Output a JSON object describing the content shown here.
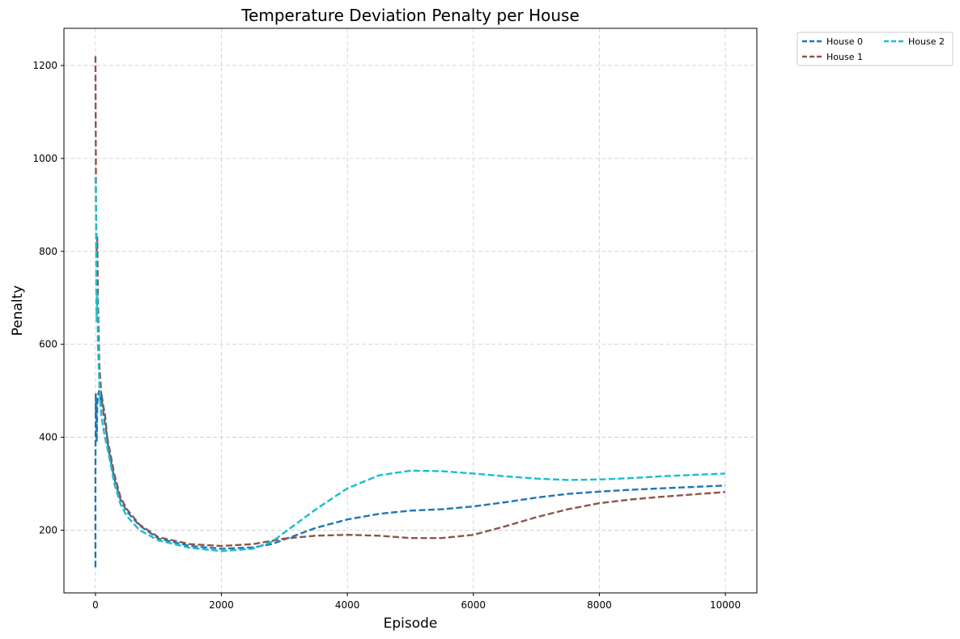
{
  "chart_data": {
    "type": "line",
    "title": "Temperature Deviation Penalty per House",
    "xlabel": "Episode",
    "ylabel": "Penalty",
    "xlim": [
      -500,
      10500
    ],
    "ylim": [
      65,
      1280
    ],
    "xticks": [
      0,
      2000,
      4000,
      6000,
      8000,
      10000
    ],
    "yticks": [
      200,
      400,
      600,
      800,
      1000,
      1200
    ],
    "grid": true,
    "legend_position": "outside-top-right",
    "series": [
      {
        "name": "House 0",
        "color": "#1f77b4",
        "points": [
          [
            0,
            120
          ],
          [
            0,
            320
          ],
          [
            5,
            495
          ],
          [
            8,
            450
          ],
          [
            15,
            480
          ],
          [
            20,
            390
          ],
          [
            30,
            470
          ],
          [
            40,
            490
          ],
          [
            60,
            500
          ],
          [
            80,
            480
          ],
          [
            100,
            490
          ],
          [
            120,
            470
          ],
          [
            150,
            450
          ],
          [
            200,
            380
          ],
          [
            300,
            310
          ],
          [
            400,
            265
          ],
          [
            500,
            240
          ],
          [
            700,
            210
          ],
          [
            1000,
            182
          ],
          [
            1500,
            166
          ],
          [
            2000,
            160
          ],
          [
            2500,
            163
          ],
          [
            2800,
            170
          ],
          [
            3000,
            180
          ],
          [
            3500,
            205
          ],
          [
            4000,
            223
          ],
          [
            4500,
            235
          ],
          [
            5000,
            242
          ],
          [
            5500,
            245
          ],
          [
            6000,
            251
          ],
          [
            6500,
            260
          ],
          [
            7000,
            270
          ],
          [
            7500,
            278
          ],
          [
            8000,
            283
          ],
          [
            8500,
            287
          ],
          [
            9000,
            290
          ],
          [
            9500,
            293
          ],
          [
            10000,
            296
          ]
        ]
      },
      {
        "name": "House 1",
        "color": "#8c564b",
        "points": [
          [
            0,
            1220
          ],
          [
            5,
            1050
          ],
          [
            10,
            870
          ],
          [
            20,
            800
          ],
          [
            30,
            830
          ],
          [
            40,
            700
          ],
          [
            60,
            560
          ],
          [
            80,
            520
          ],
          [
            100,
            480
          ],
          [
            150,
            430
          ],
          [
            200,
            390
          ],
          [
            300,
            320
          ],
          [
            400,
            270
          ],
          [
            500,
            245
          ],
          [
            700,
            212
          ],
          [
            1000,
            185
          ],
          [
            1500,
            170
          ],
          [
            2000,
            166
          ],
          [
            2500,
            170
          ],
          [
            3000,
            182
          ],
          [
            3500,
            188
          ],
          [
            4000,
            190
          ],
          [
            4500,
            188
          ],
          [
            5000,
            183
          ],
          [
            5500,
            183
          ],
          [
            6000,
            190
          ],
          [
            6500,
            208
          ],
          [
            7000,
            228
          ],
          [
            7500,
            245
          ],
          [
            8000,
            258
          ],
          [
            8500,
            266
          ],
          [
            9000,
            272
          ],
          [
            9500,
            277
          ],
          [
            10000,
            282
          ]
        ]
      },
      {
        "name": "House 2",
        "color": "#17becf",
        "points": [
          [
            0,
            960
          ],
          [
            5,
            940
          ],
          [
            10,
            860
          ],
          [
            15,
            700
          ],
          [
            20,
            650
          ],
          [
            30,
            710
          ],
          [
            40,
            600
          ],
          [
            60,
            520
          ],
          [
            80,
            470
          ],
          [
            100,
            440
          ],
          [
            150,
            400
          ],
          [
            200,
            370
          ],
          [
            300,
            300
          ],
          [
            400,
            255
          ],
          [
            500,
            230
          ],
          [
            700,
            200
          ],
          [
            1000,
            178
          ],
          [
            1500,
            162
          ],
          [
            2000,
            155
          ],
          [
            2500,
            160
          ],
          [
            2800,
            175
          ],
          [
            3000,
            195
          ],
          [
            3500,
            245
          ],
          [
            4000,
            290
          ],
          [
            4500,
            318
          ],
          [
            5000,
            328
          ],
          [
            5500,
            327
          ],
          [
            6000,
            322
          ],
          [
            6500,
            316
          ],
          [
            7000,
            311
          ],
          [
            7500,
            308
          ],
          [
            8000,
            309
          ],
          [
            8500,
            312
          ],
          [
            9000,
            316
          ],
          [
            9500,
            319
          ],
          [
            10000,
            322
          ]
        ]
      }
    ]
  }
}
